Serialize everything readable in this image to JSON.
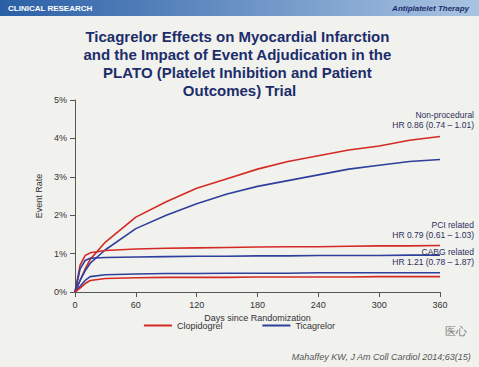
{
  "chart_data": {
    "type": "line",
    "header": "CLINICAL RESEARCH",
    "section": "Antiplatelet Therapy",
    "title": "Ticagrelor Effects on Myocardial Infarction and the Impact of Event Adjudication in the PLATO (Platelet Inhibition and Patient Outcomes) Trial",
    "x_label": "Days since Randomization",
    "y_label": "Event Rate",
    "x": [
      0,
      5,
      10,
      15,
      30,
      60,
      90,
      120,
      150,
      180,
      210,
      240,
      270,
      300,
      330,
      360
    ],
    "series": [
      {
        "name": "Clopidogrel",
        "group": "Non-procedural",
        "color": "#d42a24",
        "values": [
          0,
          0.3,
          0.6,
          0.85,
          1.3,
          1.95,
          2.35,
          2.7,
          2.95,
          3.2,
          3.4,
          3.55,
          3.7,
          3.8,
          3.95,
          4.05
        ]
      },
      {
        "name": "Ticagrelor",
        "group": "Non-procedural",
        "color": "#2e3f9c",
        "values": [
          0,
          0.3,
          0.55,
          0.75,
          1.1,
          1.65,
          2.0,
          2.3,
          2.55,
          2.75,
          2.9,
          3.05,
          3.2,
          3.3,
          3.4,
          3.45
        ]
      },
      {
        "name": "Clopidogrel",
        "group": "PCI related",
        "color": "#d42a24",
        "values": [
          0,
          0.7,
          0.95,
          1.02,
          1.08,
          1.12,
          1.14,
          1.15,
          1.16,
          1.17,
          1.18,
          1.18,
          1.19,
          1.2,
          1.2,
          1.21
        ]
      },
      {
        "name": "Ticagrelor",
        "group": "PCI related",
        "color": "#2e3f9c",
        "values": [
          0,
          0.6,
          0.82,
          0.88,
          0.9,
          0.91,
          0.92,
          0.93,
          0.93,
          0.94,
          0.94,
          0.95,
          0.95,
          0.95,
          0.96,
          0.96
        ]
      },
      {
        "name": "Ticagrelor",
        "group": "CABG related",
        "color": "#2e3f9c",
        "values": [
          0,
          0.15,
          0.3,
          0.4,
          0.45,
          0.47,
          0.48,
          0.48,
          0.49,
          0.49,
          0.49,
          0.5,
          0.5,
          0.5,
          0.5,
          0.5
        ]
      },
      {
        "name": "Clopidogrel",
        "group": "CABG related",
        "color": "#d42a24",
        "values": [
          0,
          0.1,
          0.22,
          0.3,
          0.35,
          0.37,
          0.38,
          0.38,
          0.38,
          0.39,
          0.39,
          0.39,
          0.39,
          0.4,
          0.4,
          0.4
        ]
      }
    ],
    "annotations": [
      {
        "group": "Non-procedural",
        "text": [
          "Non-procedural",
          "HR 0.86 (0.74 – 1.01)"
        ]
      },
      {
        "group": "PCI related",
        "text": [
          "PCI related",
          "HR 0.79 (0.61 – 1.03)"
        ]
      },
      {
        "group": "CABG related",
        "text": [
          "CABG related",
          "HR 1.21 (0.78 – 1.87)"
        ]
      }
    ],
    "xlim": [
      0,
      360
    ],
    "xticks": [
      0,
      60,
      120,
      180,
      240,
      300,
      360
    ],
    "ylim": [
      0,
      5
    ],
    "yticks": [
      {
        "value": 0,
        "label": "0%"
      },
      {
        "value": 1,
        "label": "1%"
      },
      {
        "value": 2,
        "label": "2%"
      },
      {
        "value": 3,
        "label": "3%"
      },
      {
        "value": 4,
        "label": "4%"
      },
      {
        "value": 5,
        "label": "5%"
      }
    ],
    "grid": false,
    "legend": "bottom",
    "source": "Mahaffey KW, J Am Coll Cardiol 2014;63(15)",
    "watermark": "医心"
  }
}
